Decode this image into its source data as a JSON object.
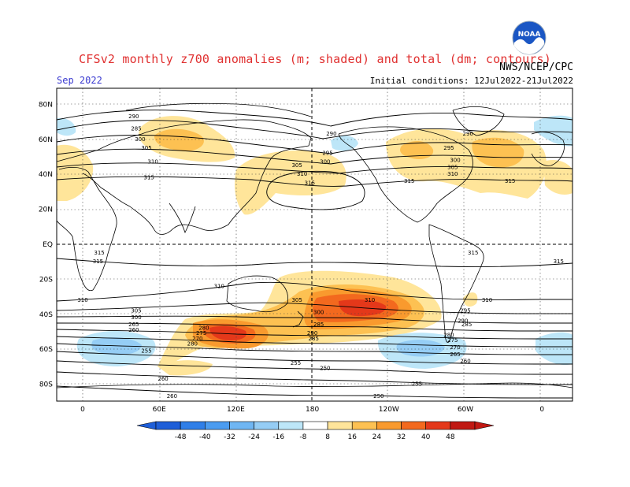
{
  "header": {
    "title": "CFSv2 monthly z700 anomalies (m; shaded) and total (dm; contours)",
    "org": "NWS/NCEP/CPC",
    "month": "Sep 2022",
    "init": "Initial conditions: 12Jul2022-21Jul2022",
    "logo_text": "NOAA"
  },
  "axes": {
    "lat_labels": [
      "80N",
      "60N",
      "40N",
      "20N",
      "EQ",
      "20S",
      "40S",
      "60S",
      "80S"
    ],
    "lon_labels": [
      "0",
      "60E",
      "120E",
      "180",
      "120W",
      "60W",
      "0"
    ]
  },
  "colorbar": {
    "labels": [
      "-48",
      "-40",
      "-32",
      "-24",
      "-16",
      "-8",
      "8",
      "16",
      "24",
      "32",
      "40",
      "48"
    ],
    "colors": [
      "#1e5ed8",
      "#2f7fe8",
      "#4b9cf0",
      "#6fb6f3",
      "#95cdf5",
      "#bde6f8",
      "#ffffff",
      "#ffe59a",
      "#fdc152",
      "#f99a2e",
      "#f3691e",
      "#e4381a",
      "#c01812"
    ]
  },
  "contour_labels": [
    {
      "text": "290",
      "lon": 40,
      "lat": 73
    },
    {
      "text": "285",
      "lon": 42,
      "lat": 66
    },
    {
      "text": "300",
      "lon": 45,
      "lat": 60
    },
    {
      "text": "305",
      "lon": 50,
      "lat": 55
    },
    {
      "text": "310",
      "lon": 55,
      "lat": 47
    },
    {
      "text": "315",
      "lon": 52,
      "lat": 38
    },
    {
      "text": "290",
      "lon": 195,
      "lat": 63
    },
    {
      "text": "295",
      "lon": 192,
      "lat": 52
    },
    {
      "text": "300",
      "lon": 190,
      "lat": 47
    },
    {
      "text": "305",
      "lon": 168,
      "lat": 45
    },
    {
      "text": "310",
      "lon": 172,
      "lat": 40
    },
    {
      "text": "315",
      "lon": 178,
      "lat": 35
    },
    {
      "text": "315",
      "lon": 256,
      "lat": 36
    },
    {
      "text": "310",
      "lon": 290,
      "lat": 40
    },
    {
      "text": "305",
      "lon": 290,
      "lat": 44
    },
    {
      "text": "300",
      "lon": 292,
      "lat": 48
    },
    {
      "text": "295",
      "lon": 287,
      "lat": 55
    },
    {
      "text": "290",
      "lon": 302,
      "lat": 63
    },
    {
      "text": "315",
      "lon": 335,
      "lat": 36
    },
    {
      "text": "315",
      "lon": 13,
      "lat": -5
    },
    {
      "text": "315",
      "lon": 306,
      "lat": -5
    },
    {
      "text": "315",
      "lon": 373,
      "lat": -10
    },
    {
      "text": "315",
      "lon": 12,
      "lat": -10
    },
    {
      "text": "310",
      "lon": 107,
      "lat": -24
    },
    {
      "text": "310",
      "lon": 0,
      "lat": -32
    },
    {
      "text": "310",
      "lon": 225,
      "lat": -32
    },
    {
      "text": "310",
      "lon": 317,
      "lat": -32
    },
    {
      "text": "305",
      "lon": 168,
      "lat": -32
    },
    {
      "text": "300",
      "lon": 185,
      "lat": -39
    },
    {
      "text": "305",
      "lon": 42,
      "lat": -38
    },
    {
      "text": "300",
      "lon": 42,
      "lat": -42
    },
    {
      "text": "285",
      "lon": 185,
      "lat": -46
    },
    {
      "text": "295",
      "lon": 300,
      "lat": -38
    },
    {
      "text": "290",
      "lon": 298,
      "lat": -44
    },
    {
      "text": "285",
      "lon": 301,
      "lat": -46
    },
    {
      "text": "280",
      "lon": 95,
      "lat": -48
    },
    {
      "text": "275",
      "lon": 93,
      "lat": -51
    },
    {
      "text": "270",
      "lon": 90,
      "lat": -54
    },
    {
      "text": "290",
      "lon": 180,
      "lat": -51
    },
    {
      "text": "285",
      "lon": 181,
      "lat": -54
    },
    {
      "text": "280",
      "lon": 287,
      "lat": -52
    },
    {
      "text": "275",
      "lon": 290,
      "lat": -55
    },
    {
      "text": "270",
      "lon": 292,
      "lat": -59
    },
    {
      "text": "265",
      "lon": 292,
      "lat": -63
    },
    {
      "text": "260",
      "lon": 300,
      "lat": -67
    },
    {
      "text": "255",
      "lon": 50,
      "lat": -61
    },
    {
      "text": "255",
      "lon": 167,
      "lat": -68
    },
    {
      "text": "250",
      "lon": 190,
      "lat": -71
    },
    {
      "text": "260",
      "lon": 63,
      "lat": -77
    },
    {
      "text": "255",
      "lon": 262,
      "lat": -80
    },
    {
      "text": "260",
      "lon": 70,
      "lat": -87
    },
    {
      "text": "250",
      "lon": 232,
      "lat": -87
    },
    {
      "text": "280",
      "lon": 86,
      "lat": -57
    },
    {
      "text": "265",
      "lon": 40,
      "lat": -46
    },
    {
      "text": "260",
      "lon": 40,
      "lat": -49
    }
  ]
}
